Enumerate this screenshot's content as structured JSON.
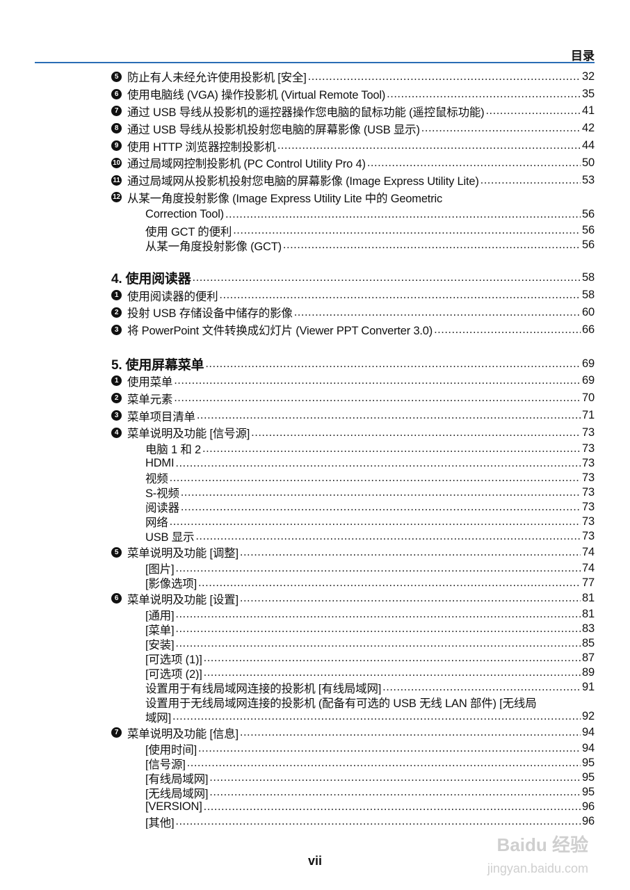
{
  "header": {
    "title": "目录",
    "rule_color": "#2a6db5"
  },
  "entries": [
    {
      "type": "item",
      "bullet": "5",
      "label": "防止有人未经允许使用投影机 [安全]",
      "page": "32"
    },
    {
      "type": "item",
      "bullet": "6",
      "label": "使用电脑线 (VGA) 操作投影机 (Virtual Remote Tool)",
      "page": "35"
    },
    {
      "type": "item",
      "bullet": "7",
      "label": "通过 USB 导线从投影机的遥控器操作您电脑的鼠标功能 (遥控鼠标功能)",
      "page": "41"
    },
    {
      "type": "item",
      "bullet": "8",
      "label": "通过 USB 导线从投影机投射您电脑的屏幕影像 (USB 显示)",
      "page": "42"
    },
    {
      "type": "item",
      "bullet": "9",
      "label": "使用 HTTP 浏览器控制投影机",
      "page": "44"
    },
    {
      "type": "item",
      "bullet": "10",
      "label": "通过局域网控制投影机 (PC Control Utility Pro 4)",
      "page": "50"
    },
    {
      "type": "item",
      "bullet": "11",
      "label": "通过局域网从投影机投射您电脑的屏幕影像 (Image Express Utility Lite)",
      "page": "53"
    },
    {
      "type": "item",
      "bullet": "12",
      "label": "从某一角度投射影像 (Image Express Utility Lite 中的 Geometric",
      "page": ""
    },
    {
      "type": "cont",
      "label": "Correction Tool)",
      "page": "56"
    },
    {
      "type": "sub",
      "label": "使用 GCT 的便利",
      "page": "56"
    },
    {
      "type": "sub",
      "label": "从某一角度投射影像 (GCT)",
      "page": "56"
    },
    {
      "type": "section",
      "label": "4. 使用阅读器",
      "page": "58"
    },
    {
      "type": "item",
      "bullet": "1",
      "label": "使用阅读器的便利",
      "page": "58"
    },
    {
      "type": "item",
      "bullet": "2",
      "label": "投射 USB 存储设备中储存的影像",
      "page": "60"
    },
    {
      "type": "item",
      "bullet": "3",
      "label": "将 PowerPoint 文件转换成幻灯片 (Viewer PPT Converter 3.0)",
      "page": "66"
    },
    {
      "type": "section",
      "label": "5. 使用屏幕菜单",
      "page": "69"
    },
    {
      "type": "item",
      "bullet": "1",
      "label": "使用菜单",
      "page": "69"
    },
    {
      "type": "item",
      "bullet": "2",
      "label": "菜单元素",
      "page": "70"
    },
    {
      "type": "item",
      "bullet": "3",
      "label": "菜单项目清单",
      "page": "71"
    },
    {
      "type": "item",
      "bullet": "4",
      "label": "菜单说明及功能 [信号源]",
      "page": "73"
    },
    {
      "type": "sub",
      "label": "电脑 1 和 2",
      "page": "73"
    },
    {
      "type": "sub",
      "label": "HDMI",
      "page": "73"
    },
    {
      "type": "sub",
      "label": "视频",
      "page": "73"
    },
    {
      "type": "sub",
      "label": "S-视频",
      "page": "73"
    },
    {
      "type": "sub",
      "label": "阅读器",
      "page": "73"
    },
    {
      "type": "sub",
      "label": "网络",
      "page": "73"
    },
    {
      "type": "sub",
      "label": "USB 显示",
      "page": "73"
    },
    {
      "type": "item",
      "bullet": "5",
      "label": "菜单说明及功能 [调整]",
      "page": "74"
    },
    {
      "type": "sub",
      "label": "[图片]",
      "page": "74"
    },
    {
      "type": "sub",
      "label": "[影像选项]",
      "page": "77"
    },
    {
      "type": "item",
      "bullet": "6",
      "label": "菜单说明及功能 [设置]",
      "page": "81"
    },
    {
      "type": "sub",
      "label": "[通用]",
      "page": "81"
    },
    {
      "type": "sub",
      "label": "[菜单]",
      "page": "83"
    },
    {
      "type": "sub",
      "label": "[安装]",
      "page": "85"
    },
    {
      "type": "sub",
      "label": "[可选项 (1)]",
      "page": "87"
    },
    {
      "type": "sub",
      "label": "[可选项 (2)]",
      "page": "89"
    },
    {
      "type": "sub",
      "label": "设置用于有线局域网连接的投影机 [有线局域网]",
      "page": "91"
    },
    {
      "type": "subcont",
      "label": "设置用于无线局域网连接的投影机 (配备有可选的 USB 无线 LAN 部件) [无线局",
      "page": ""
    },
    {
      "type": "sub",
      "label": "域网]",
      "page": "92"
    },
    {
      "type": "item",
      "bullet": "7",
      "label": "菜单说明及功能 [信息]",
      "page": "94"
    },
    {
      "type": "sub",
      "label": "[使用时间]",
      "page": "94"
    },
    {
      "type": "sub",
      "label": "[信号源]",
      "page": "95"
    },
    {
      "type": "sub",
      "label": "[有线局域网]",
      "page": "95"
    },
    {
      "type": "sub",
      "label": "[无线局域网]",
      "page": "95"
    },
    {
      "type": "sub",
      "label": "[VERSION]",
      "page": "96"
    },
    {
      "type": "sub",
      "label": "[其他]",
      "page": "96"
    }
  ],
  "footer": {
    "page_number": "vii"
  },
  "watermark": {
    "line1": "Baidu 经验",
    "line2": "jingyan.baidu.com"
  }
}
